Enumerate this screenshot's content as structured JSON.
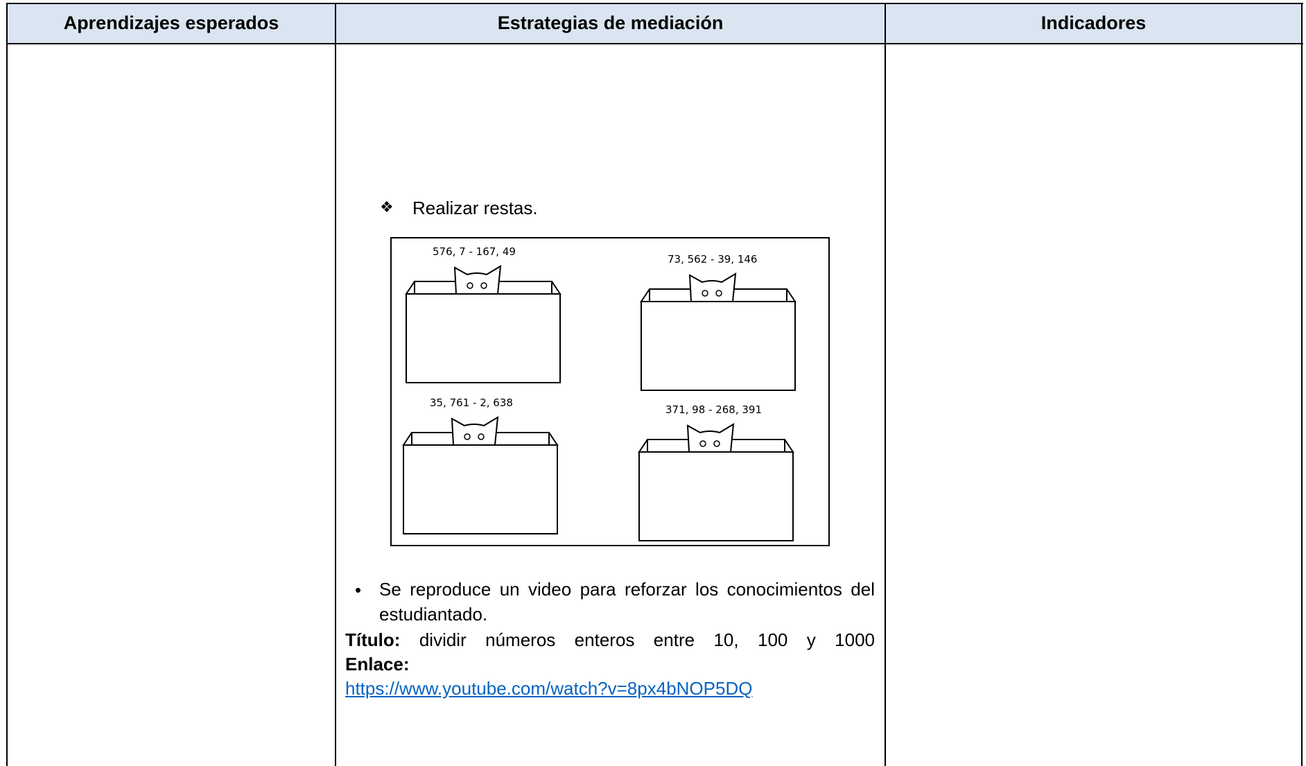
{
  "header": [
    "Aprendizajes esperados",
    "Estrategias de mediación",
    "Indicadores"
  ],
  "content": {
    "bullet_1": "Realizar restas.",
    "exercises": [
      "576, 7 - 167, 49",
      "73, 562 - 39, 146",
      "35, 761 - 2, 638",
      "371, 98 - 268, 391"
    ],
    "bullet_2": "Se reproduce un video para reforzar los conocimientos del estudiantado.",
    "title_label": "Título:",
    "title_text": "dividir números enteros entre 10, 100 y 1000",
    "link_label": "Enlace:",
    "link": "https://www.youtube.com/watch?v=8px4bNOP5DQ"
  }
}
